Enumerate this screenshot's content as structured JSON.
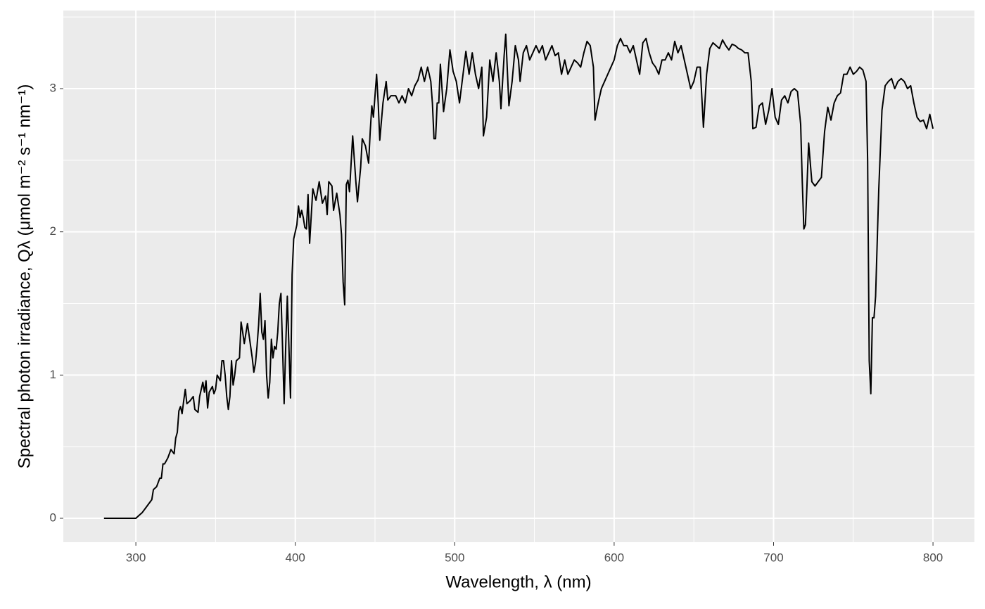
{
  "chart_data": {
    "type": "line",
    "x_label": "Wavelength, λ (nm)",
    "y_label": "Spectral photon irradiance, Qλ (μmol m⁻² s⁻¹ nm⁻¹)",
    "color": "#000000",
    "xlim": [
      254.5,
      826
    ],
    "ylim": [
      -0.167,
      3.545
    ],
    "xticks": [
      300,
      400,
      500,
      600,
      700,
      800
    ],
    "yticks": [
      0,
      1,
      2,
      3
    ],
    "xminor": [
      350,
      450,
      550,
      650,
      750
    ],
    "yminor": [
      0.5,
      1.5,
      2.5,
      3.5
    ],
    "grid": true,
    "x": [
      280,
      285,
      290,
      295,
      300,
      302,
      304,
      306,
      308,
      310,
      311,
      313,
      315,
      316,
      317,
      318,
      320,
      322,
      324,
      325,
      326,
      327,
      328,
      329,
      330,
      331,
      332,
      334,
      336,
      337,
      339,
      340,
      342,
      343,
      344,
      345,
      346,
      348,
      349,
      350,
      351,
      353,
      354,
      355,
      356,
      357,
      358,
      359,
      360,
      361,
      362,
      363,
      365,
      366,
      367,
      368,
      370,
      372,
      373,
      374,
      375,
      376,
      377,
      378,
      379,
      380,
      381,
      382,
      383,
      384,
      385,
      386,
      387,
      388,
      389,
      390,
      391,
      392,
      393,
      394,
      395,
      396,
      397,
      398,
      399,
      401,
      402,
      403,
      404,
      405,
      406,
      407,
      408,
      409,
      411,
      413,
      415,
      417,
      419,
      420,
      421,
      423,
      424,
      426,
      428,
      429,
      430,
      431,
      432,
      433,
      434,
      436,
      438,
      439,
      441,
      442,
      444,
      446,
      447,
      448,
      449,
      451,
      452,
      453,
      455,
      457,
      458,
      460,
      463,
      465,
      467,
      469,
      471,
      473,
      475,
      477,
      479,
      481,
      483,
      485,
      486,
      487,
      488,
      489,
      490,
      491,
      493,
      495,
      497,
      499,
      501,
      503,
      505,
      507,
      509,
      511,
      513,
      515,
      517,
      518,
      520,
      522,
      524,
      526,
      528,
      529,
      531,
      532,
      534,
      536,
      538,
      540,
      541,
      543,
      545,
      547,
      549,
      551,
      553,
      555,
      557,
      559,
      561,
      563,
      565,
      567,
      569,
      571,
      573,
      575,
      577,
      579,
      581,
      583,
      585,
      587,
      588,
      590,
      592,
      594,
      596,
      598,
      600,
      602,
      604,
      606,
      608,
      610,
      612,
      614,
      616,
      618,
      620,
      622,
      624,
      626,
      628,
      630,
      632,
      634,
      636,
      638,
      640,
      642,
      644,
      646,
      648,
      650,
      652,
      654,
      656,
      658,
      660,
      662,
      664,
      666,
      668,
      670,
      672,
      674,
      676,
      678,
      680,
      682,
      684,
      686,
      687,
      689,
      691,
      693,
      695,
      697,
      699,
      701,
      703,
      705,
      707,
      709,
      711,
      713,
      715,
      717,
      718,
      719,
      720,
      722,
      724,
      726,
      728,
      730,
      732,
      734,
      736,
      738,
      740,
      742,
      744,
      746,
      748,
      750,
      752,
      754,
      756,
      758,
      759,
      760,
      761,
      762,
      763,
      764,
      766,
      768,
      770,
      772,
      774,
      776,
      778,
      780,
      782,
      784,
      786,
      788,
      790,
      792,
      794,
      796,
      798,
      800
    ],
    "values": [
      0,
      0,
      0,
      0,
      0,
      0.02,
      0.04,
      0.07,
      0.1,
      0.13,
      0.2,
      0.22,
      0.28,
      0.28,
      0.38,
      0.38,
      0.42,
      0.48,
      0.45,
      0.56,
      0.6,
      0.75,
      0.78,
      0.73,
      0.82,
      0.9,
      0.8,
      0.82,
      0.85,
      0.76,
      0.74,
      0.85,
      0.95,
      0.88,
      0.96,
      0.77,
      0.88,
      0.92,
      0.87,
      0.9,
      1.0,
      0.96,
      1.1,
      1.1,
      1.0,
      0.85,
      0.76,
      0.85,
      1.1,
      0.93,
      1.0,
      1.1,
      1.12,
      1.37,
      1.3,
      1.22,
      1.36,
      1.2,
      1.12,
      1.02,
      1.08,
      1.2,
      1.35,
      1.57,
      1.3,
      1.25,
      1.38,
      1.0,
      0.84,
      0.95,
      1.25,
      1.12,
      1.2,
      1.18,
      1.3,
      1.5,
      1.57,
      1.2,
      0.8,
      1.2,
      1.55,
      1.2,
      0.84,
      1.7,
      1.95,
      2.05,
      2.18,
      2.1,
      2.15,
      2.1,
      2.03,
      2.02,
      2.26,
      1.92,
      2.3,
      2.22,
      2.35,
      2.2,
      2.25,
      2.12,
      2.35,
      2.32,
      2.15,
      2.27,
      2.12,
      1.98,
      1.65,
      1.49,
      2.33,
      2.36,
      2.28,
      2.67,
      2.35,
      2.21,
      2.45,
      2.65,
      2.6,
      2.48,
      2.7,
      2.88,
      2.8,
      3.1,
      2.9,
      2.64,
      2.9,
      3.05,
      2.92,
      2.95,
      2.95,
      2.9,
      2.95,
      2.9,
      3.0,
      2.95,
      3.02,
      3.06,
      3.15,
      3.05,
      3.15,
      3.05,
      2.9,
      2.65,
      2.65,
      2.9,
      2.9,
      3.17,
      2.84,
      3.0,
      3.27,
      3.12,
      3.05,
      2.9,
      3.08,
      3.26,
      3.1,
      3.25,
      3.1,
      3.0,
      3.15,
      2.67,
      2.8,
      3.2,
      3.05,
      3.25,
      3.05,
      2.86,
      3.23,
      3.38,
      2.88,
      3.05,
      3.3,
      3.2,
      3.05,
      3.25,
      3.3,
      3.2,
      3.25,
      3.3,
      3.25,
      3.3,
      3.2,
      3.25,
      3.3,
      3.23,
      3.25,
      3.1,
      3.2,
      3.1,
      3.15,
      3.2,
      3.18,
      3.15,
      3.25,
      3.33,
      3.3,
      3.15,
      2.78,
      2.9,
      3.0,
      3.05,
      3.1,
      3.15,
      3.2,
      3.3,
      3.35,
      3.3,
      3.3,
      3.25,
      3.3,
      3.2,
      3.1,
      3.32,
      3.35,
      3.25,
      3.18,
      3.15,
      3.1,
      3.2,
      3.2,
      3.25,
      3.2,
      3.33,
      3.25,
      3.3,
      3.2,
      3.1,
      3.0,
      3.05,
      3.15,
      3.15,
      2.73,
      3.1,
      3.28,
      3.32,
      3.3,
      3.28,
      3.34,
      3.3,
      3.27,
      3.31,
      3.3,
      3.28,
      3.27,
      3.25,
      3.25,
      3.05,
      2.72,
      2.73,
      2.88,
      2.9,
      2.75,
      2.85,
      3.0,
      2.8,
      2.75,
      2.92,
      2.95,
      2.9,
      2.98,
      3.0,
      2.98,
      2.75,
      2.35,
      2.02,
      2.05,
      2.62,
      2.35,
      2.32,
      2.35,
      2.38,
      2.7,
      2.87,
      2.78,
      2.9,
      2.95,
      2.97,
      3.1,
      3.1,
      3.15,
      3.1,
      3.12,
      3.15,
      3.13,
      3.05,
      2.5,
      1.1,
      0.87,
      1.4,
      1.4,
      1.55,
      2.3,
      2.85,
      3.02,
      3.05,
      3.07,
      3.0,
      3.05,
      3.07,
      3.05,
      3.0,
      3.02,
      2.9,
      2.8,
      2.77,
      2.78,
      2.72,
      2.82,
      2.72
    ]
  }
}
